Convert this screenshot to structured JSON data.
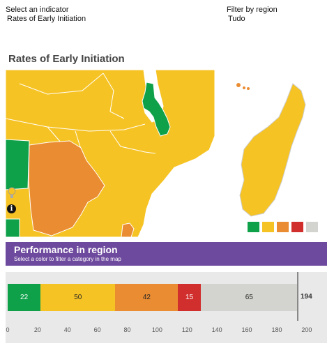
{
  "filters": {
    "indicator_label": "Select an indicator",
    "indicator_value": "Rates of Early Initiation",
    "region_label": "Filter by region",
    "region_value": "Tudo"
  },
  "map": {
    "title": "Rates of Early Initiation",
    "zoom_icon": "lightbulb-icon",
    "info_icon": "info-icon",
    "info_glyph": "i"
  },
  "legend": {
    "colors": [
      "#0fa14a",
      "#f6c325",
      "#ea8c32",
      "#d12f2d",
      "#d3d3cf"
    ]
  },
  "performance": {
    "title": "Performance in region",
    "subtitle": "Select a color to filter a category in the map"
  },
  "chart_data": {
    "type": "bar",
    "orientation": "horizontal-stacked",
    "series": [
      {
        "value": 22,
        "color": "#0fa14a"
      },
      {
        "value": 50,
        "color": "#f6c325"
      },
      {
        "value": 42,
        "color": "#ea8c32"
      },
      {
        "value": 15,
        "color": "#d12f2d"
      },
      {
        "value": 65,
        "color": "#d3d3cf"
      }
    ],
    "total": 194,
    "ticks": [
      0,
      20,
      40,
      60,
      80,
      100,
      120,
      140,
      160,
      180,
      200
    ],
    "xlim": [
      0,
      215
    ]
  }
}
